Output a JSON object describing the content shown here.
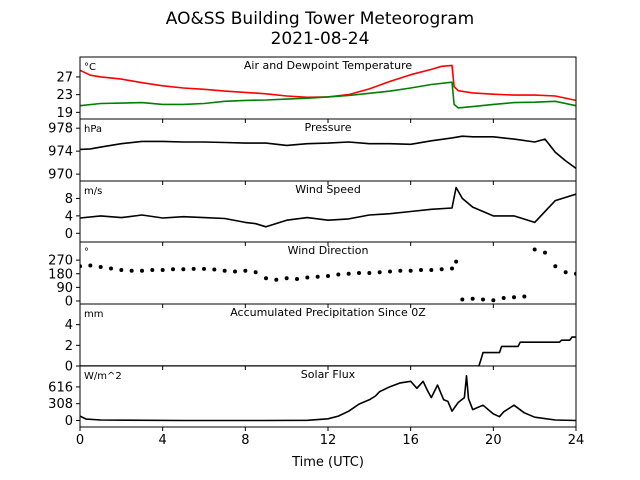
{
  "figure": {
    "title_line1": "AO&SS Building Tower Meteorogram",
    "title_line2": "2021-08-24",
    "xlabel": "Time (UTC)"
  },
  "chart_data": [
    {
      "type": "line",
      "title": "Air and Dewpoint Temperature",
      "unit": "°C",
      "xlim": [
        0,
        24
      ],
      "xticks": [
        0,
        4,
        8,
        12,
        16,
        20,
        24
      ],
      "ylim": [
        17.5,
        31.5
      ],
      "yticks": [
        19,
        23,
        27
      ],
      "series": [
        {
          "color": "#ff0000",
          "x": [
            0,
            0.5,
            1,
            2,
            3,
            4,
            5,
            6,
            7,
            8,
            9,
            10,
            11,
            12,
            13,
            14,
            15,
            16,
            17,
            17.5,
            18,
            18.1,
            18.3,
            19,
            20,
            21,
            22,
            23,
            24
          ],
          "values": [
            28.5,
            27.4,
            27,
            26.5,
            25.7,
            25,
            24.5,
            24.2,
            23.8,
            23.5,
            23.2,
            22.7,
            22.4,
            22.5,
            23,
            24.3,
            26,
            27.5,
            28.7,
            29.4,
            29.6,
            24.8,
            23.9,
            23.4,
            23.1,
            22.9,
            22.9,
            22.7,
            21.7
          ]
        },
        {
          "color": "#008000",
          "x": [
            0,
            1,
            2,
            3,
            4,
            5,
            6,
            7,
            8,
            9,
            10,
            11,
            12,
            13,
            14,
            15,
            16,
            17,
            18,
            18.1,
            18.3,
            19,
            20,
            21,
            22,
            23,
            24
          ],
          "values": [
            20.5,
            21,
            21.1,
            21.2,
            20.8,
            20.8,
            21,
            21.5,
            21.7,
            21.8,
            22,
            22.2,
            22.5,
            22.8,
            23.3,
            23.8,
            24.5,
            25.3,
            25.8,
            20.8,
            20,
            20.3,
            20.8,
            21.2,
            21.3,
            21.5,
            20.5
          ]
        }
      ]
    },
    {
      "type": "line",
      "title": "Pressure",
      "unit": "hPa",
      "xlim": [
        0,
        24
      ],
      "ylim": [
        968.8,
        979.6
      ],
      "yticks": [
        970,
        974,
        978
      ],
      "series": [
        {
          "color": "#000000",
          "x": [
            0,
            0.5,
            1,
            2,
            3,
            4,
            5,
            6,
            7,
            8,
            9,
            10,
            11,
            12,
            13,
            14,
            15,
            16,
            17,
            18,
            18.5,
            19,
            20,
            21,
            22,
            22.5,
            23,
            23.5,
            24
          ],
          "values": [
            974.3,
            974.4,
            974.7,
            975.3,
            975.7,
            975.7,
            975.6,
            975.6,
            975.5,
            975.4,
            975.4,
            975,
            975.3,
            975.4,
            975.6,
            975.3,
            975.3,
            975.2,
            975.8,
            976.3,
            976.6,
            976.5,
            976.5,
            976.1,
            975.6,
            976.1,
            973.8,
            972.3,
            971
          ]
        }
      ]
    },
    {
      "type": "line",
      "title": "Wind Speed",
      "unit": "m/s",
      "xlim": [
        0,
        24
      ],
      "ylim": [
        -2,
        12
      ],
      "yticks": [
        0,
        4,
        8
      ],
      "series": [
        {
          "color": "#000000",
          "x": [
            0,
            1,
            2,
            3,
            4,
            5,
            6,
            7,
            8,
            8.5,
            9,
            10,
            11,
            12,
            13,
            14,
            15,
            16,
            17,
            18,
            18.2,
            18.5,
            19,
            20,
            21,
            22,
            23,
            24
          ],
          "values": [
            3.5,
            4,
            3.6,
            4.2,
            3.5,
            3.8,
            3.6,
            3.4,
            2.5,
            2.2,
            1.5,
            3,
            3.6,
            3,
            3.3,
            4.2,
            4.5,
            5,
            5.5,
            5.8,
            10.5,
            8,
            6,
            4,
            4,
            2.5,
            7.5,
            9
          ]
        }
      ]
    },
    {
      "type": "scatter",
      "title": "Wind Direction",
      "unit": "°",
      "xlim": [
        0,
        24
      ],
      "ylim": [
        -20,
        390
      ],
      "yticks": [
        0,
        90,
        180,
        270
      ],
      "series": [
        {
          "color": "#000000",
          "x": [
            0,
            0.5,
            1,
            1.5,
            2,
            2.5,
            3,
            3.5,
            4,
            4.5,
            5,
            5.5,
            6,
            6.5,
            7,
            7.5,
            8,
            8.5,
            9,
            9.5,
            10,
            10.5,
            11,
            11.5,
            12,
            12.5,
            13,
            13.5,
            14,
            14.5,
            15,
            15.5,
            16,
            16.5,
            17,
            17.5,
            18,
            18.2,
            18.5,
            19,
            19.5,
            20,
            20.5,
            21,
            21.5,
            22,
            22.5,
            23,
            23.5,
            24
          ],
          "values": [
            230,
            235,
            225,
            215,
            205,
            200,
            200,
            205,
            205,
            210,
            210,
            212,
            212,
            208,
            200,
            195,
            200,
            190,
            150,
            140,
            150,
            145,
            155,
            160,
            165,
            175,
            180,
            185,
            185,
            190,
            195,
            200,
            200,
            205,
            205,
            210,
            215,
            260,
            10,
            15,
            10,
            5,
            20,
            25,
            30,
            340,
            320,
            230,
            190,
            180
          ]
        }
      ]
    },
    {
      "type": "line",
      "title": "Accumulated Precipitation Since 0Z",
      "unit": "mm",
      "xlim": [
        0,
        24
      ],
      "ylim": [
        0,
        6
      ],
      "yticks": [
        0,
        2,
        4
      ],
      "series": [
        {
          "color": "#000000",
          "x": [
            0,
            19.3,
            19.4,
            19.5,
            20.3,
            20.4,
            20.6,
            21.2,
            21.3,
            23.2,
            23.3,
            23.7,
            23.8,
            24
          ],
          "values": [
            0,
            0,
            0.6,
            1.3,
            1.3,
            1.9,
            1.9,
            1.9,
            2.3,
            2.3,
            2.5,
            2.5,
            2.8,
            2.8
          ]
        }
      ]
    },
    {
      "type": "line",
      "title": "Solar Flux",
      "unit": "W/m^2",
      "xlim": [
        0,
        24
      ],
      "ylim": [
        -120,
        1000
      ],
      "yticks": [
        0,
        308,
        616
      ],
      "series": [
        {
          "color": "#000000",
          "x": [
            0,
            0.3,
            1,
            5,
            9,
            11,
            12,
            12.5,
            13,
            13.5,
            14,
            14.3,
            14.5,
            15,
            15.5,
            16,
            16.3,
            16.6,
            16.8,
            17,
            17.3,
            17.6,
            17.8,
            18,
            18.3,
            18.6,
            18.7,
            18.8,
            19,
            19.5,
            20,
            20.3,
            20.5,
            21,
            21.5,
            22,
            23,
            24
          ],
          "values": [
            80,
            25,
            8,
            0,
            0,
            3,
            30,
            80,
            170,
            300,
            380,
            450,
            530,
            620,
            690,
            720,
            590,
            720,
            560,
            420,
            650,
            380,
            350,
            170,
            330,
            420,
            820,
            400,
            200,
            280,
            120,
            70,
            160,
            280,
            140,
            60,
            8,
            0
          ]
        }
      ]
    }
  ]
}
